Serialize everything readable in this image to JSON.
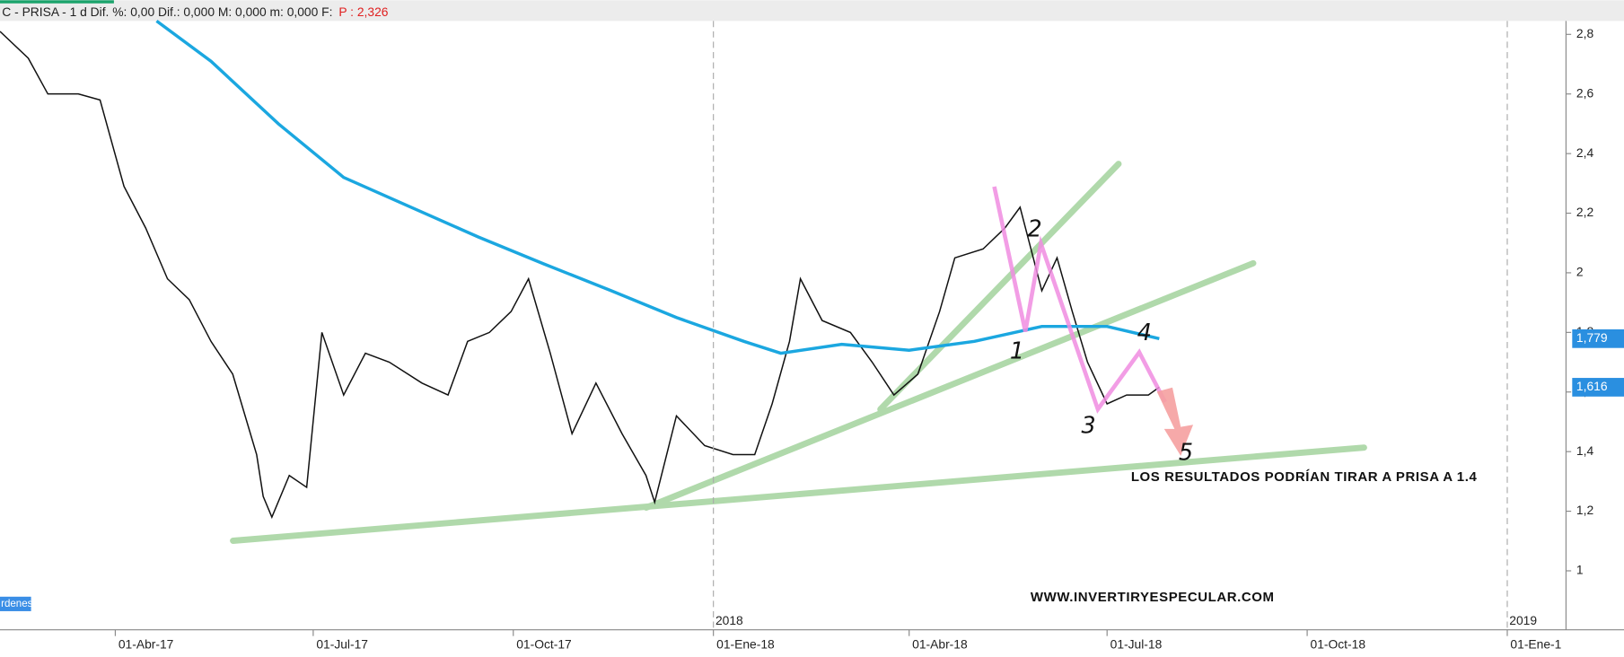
{
  "header": {
    "text": "C - PRISA -  1 d  Dif. %: 0,00  Dif.: 0,000  M: 0,000  m: 0,000  F:",
    "highlight": "P : 2,326"
  },
  "footer_label": "rdenes",
  "chart_data": {
    "type": "line",
    "xlim": [
      "2017-02-07",
      "2019-01-28"
    ],
    "ylim": [
      0.802,
      2.845
    ],
    "yticks": [
      1,
      {
        "value": 1.2,
        "label": "1,2"
      },
      {
        "value": 1.4,
        "label": "1,4"
      },
      {
        "value": 1.6,
        "label": "1,6"
      },
      {
        "value": 1.8,
        "label": "1,8"
      },
      2,
      {
        "value": 2.2,
        "label": "2,2"
      },
      {
        "value": 2.4,
        "label": "2,4"
      },
      {
        "value": 2.6,
        "label": "2,6"
      },
      {
        "value": 2.8,
        "label": "2,8"
      }
    ],
    "xticks": [
      {
        "value": "2017-04-01",
        "label": "01-Abr-17"
      },
      {
        "value": "2017-07-01",
        "label": "01-Jul-17"
      },
      {
        "value": "2017-10-01",
        "label": "01-Oct-17"
      },
      {
        "value": "2018-01-01",
        "label": "01-Ene-18"
      },
      {
        "value": "2018-04-01",
        "label": "01-Abr-18"
      },
      {
        "value": "2018-07-01",
        "label": "01-Jul-18"
      },
      {
        "value": "2018-10-01",
        "label": "01-Oct-18"
      },
      {
        "value": "2019-01-01",
        "label": "01-Ene-1"
      }
    ],
    "year_markers": [
      {
        "value": "2018-01-01",
        "label": "2018"
      },
      {
        "value": "2019-01-01",
        "label": "2019"
      }
    ],
    "series": [
      {
        "color": "#111111",
        "x": [
          "2017-02-07",
          "2017-02-20",
          "2017-03-01",
          "2017-03-15",
          "2017-03-25",
          "2017-04-05",
          "2017-04-15",
          "2017-04-25",
          "2017-05-05",
          "2017-05-15",
          "2017-05-25",
          "2017-06-05",
          "2017-06-08",
          "2017-06-12",
          "2017-06-20",
          "2017-06-28",
          "2017-07-05",
          "2017-07-15",
          "2017-07-25",
          "2017-08-05",
          "2017-08-20",
          "2017-09-01",
          "2017-09-10",
          "2017-09-20",
          "2017-09-30",
          "2017-10-08",
          "2017-10-18",
          "2017-10-28",
          "2017-11-08",
          "2017-11-20",
          "2017-12-01",
          "2017-12-05",
          "2017-12-15",
          "2017-12-28",
          "2018-01-10",
          "2018-01-20",
          "2018-01-28",
          "2018-02-05",
          "2018-02-10",
          "2018-02-20",
          "2018-03-05",
          "2018-03-15",
          "2018-03-25",
          "2018-04-05",
          "2018-04-15",
          "2018-04-22",
          "2018-05-05",
          "2018-05-15",
          "2018-05-22",
          "2018-06-01",
          "2018-06-08",
          "2018-06-15",
          "2018-06-22",
          "2018-07-01",
          "2018-07-10",
          "2018-07-20",
          "2018-07-25"
        ],
        "values": [
          2.81,
          2.72,
          2.6,
          2.6,
          2.58,
          2.29,
          2.15,
          1.98,
          1.91,
          1.77,
          1.66,
          1.39,
          1.25,
          1.18,
          1.32,
          1.28,
          1.8,
          1.59,
          1.73,
          1.7,
          1.63,
          1.59,
          1.77,
          1.8,
          1.87,
          1.98,
          1.73,
          1.46,
          1.63,
          1.46,
          1.32,
          1.23,
          1.52,
          1.42,
          1.39,
          1.39,
          1.56,
          1.77,
          1.98,
          1.84,
          1.8,
          1.7,
          1.59,
          1.66,
          1.87,
          2.05,
          2.08,
          2.15,
          2.22,
          1.94,
          2.05,
          1.87,
          1.7,
          1.56,
          1.59,
          1.59,
          1.616
        ]
      },
      {
        "color": "#1ba7e0",
        "x": [
          "2017-04-20",
          "2017-05-15",
          "2017-06-15",
          "2017-07-15",
          "2017-08-15",
          "2017-09-15",
          "2017-10-15",
          "2017-11-15",
          "2017-12-15",
          "2018-01-15",
          "2018-02-01",
          "2018-03-01",
          "2018-04-01",
          "2018-05-01",
          "2018-06-01",
          "2018-07-01",
          "2018-07-25"
        ],
        "values": [
          2.845,
          2.71,
          2.5,
          2.32,
          2.22,
          2.12,
          2.03,
          1.94,
          1.85,
          1.77,
          1.73,
          1.76,
          1.74,
          1.77,
          1.82,
          1.82,
          1.779
        ]
      }
    ],
    "last_labels": [
      {
        "value": 1.779,
        "label": "1,779"
      },
      {
        "value": 1.616,
        "label": "1,616"
      }
    ],
    "wave_labels": [
      "1",
      "2",
      "3",
      "4",
      "5"
    ],
    "annotations": [
      "LOS RESULTADOS PODRÍAN TIRAR A PRISA A 1.4",
      "WWW.INVERTIRYESPECULAR.COM"
    ]
  }
}
